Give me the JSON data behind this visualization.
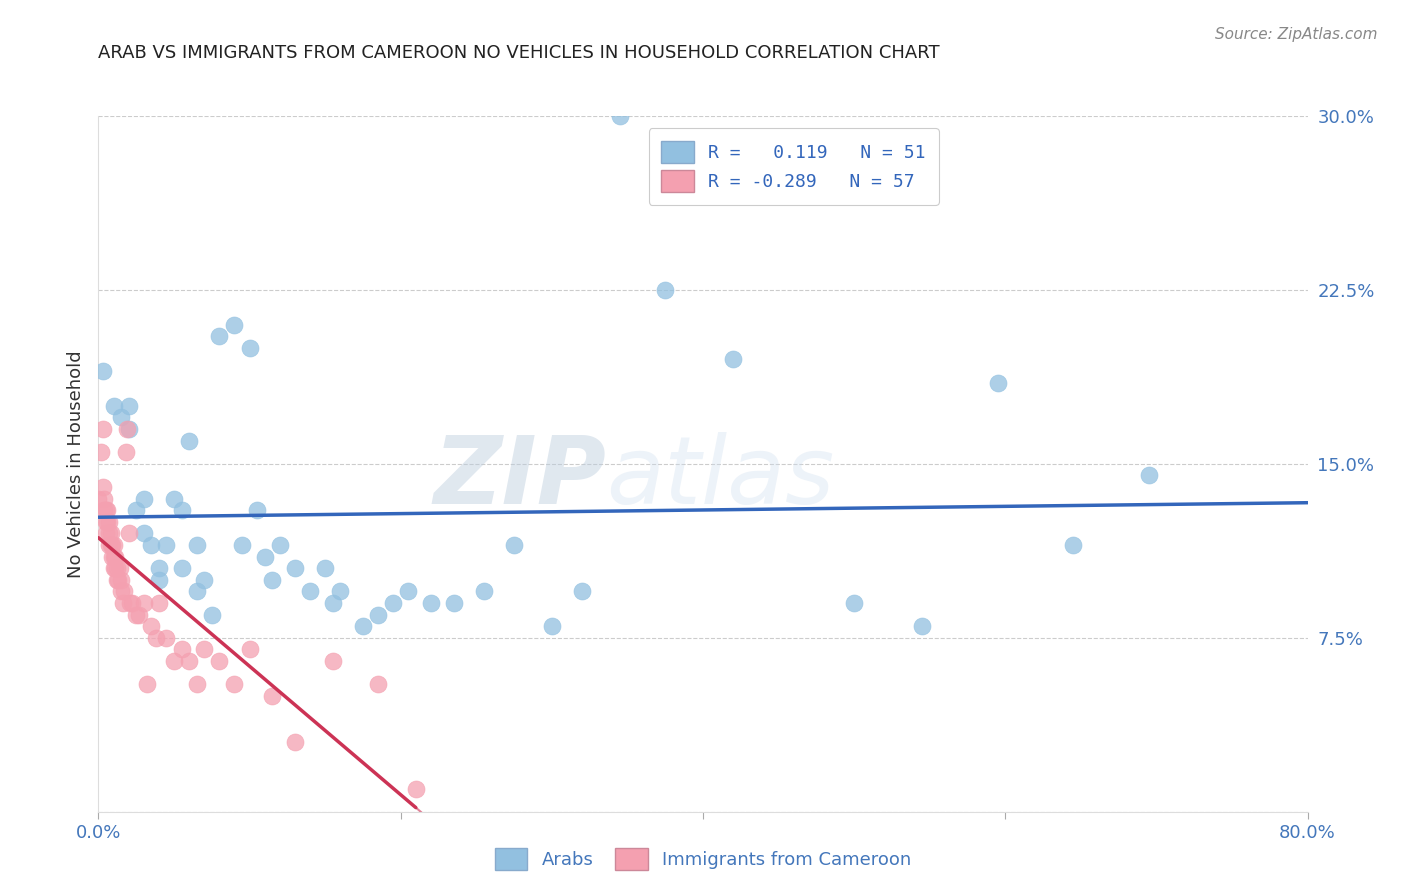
{
  "title": "ARAB VS IMMIGRANTS FROM CAMEROON NO VEHICLES IN HOUSEHOLD CORRELATION CHART",
  "source": "Source: ZipAtlas.com",
  "ylabel": "No Vehicles in Household",
  "xlim": [
    0,
    0.8
  ],
  "ylim": [
    0,
    0.3
  ],
  "legend_r1": "R =   0.119   N = 51",
  "legend_r2": "R = -0.289   N = 57",
  "color_arab": "#92C0E0",
  "color_cameroon": "#F4A0B0",
  "color_arab_line": "#3366BB",
  "color_cam_line": "#CC3355",
  "watermark_zip": "ZIP",
  "watermark_atlas": "atlas",
  "arab_x": [
    0.003,
    0.01,
    0.015,
    0.02,
    0.02,
    0.025,
    0.03,
    0.03,
    0.035,
    0.04,
    0.04,
    0.045,
    0.05,
    0.055,
    0.055,
    0.06,
    0.065,
    0.065,
    0.07,
    0.075,
    0.08,
    0.09,
    0.095,
    0.1,
    0.105,
    0.11,
    0.115,
    0.12,
    0.13,
    0.14,
    0.15,
    0.155,
    0.16,
    0.175,
    0.185,
    0.195,
    0.205,
    0.22,
    0.235,
    0.255,
    0.275,
    0.3,
    0.32,
    0.345,
    0.375,
    0.42,
    0.5,
    0.545,
    0.595,
    0.645,
    0.695
  ],
  "arab_y": [
    0.19,
    0.175,
    0.17,
    0.175,
    0.165,
    0.13,
    0.135,
    0.12,
    0.115,
    0.105,
    0.1,
    0.115,
    0.135,
    0.13,
    0.105,
    0.16,
    0.115,
    0.095,
    0.1,
    0.085,
    0.205,
    0.21,
    0.115,
    0.2,
    0.13,
    0.11,
    0.1,
    0.115,
    0.105,
    0.095,
    0.105,
    0.09,
    0.095,
    0.08,
    0.085,
    0.09,
    0.095,
    0.09,
    0.09,
    0.095,
    0.115,
    0.08,
    0.095,
    0.3,
    0.225,
    0.195,
    0.09,
    0.08,
    0.185,
    0.115,
    0.145
  ],
  "cameroon_x": [
    0.0,
    0.002,
    0.003,
    0.003,
    0.004,
    0.004,
    0.005,
    0.005,
    0.005,
    0.006,
    0.006,
    0.007,
    0.007,
    0.007,
    0.008,
    0.008,
    0.009,
    0.009,
    0.01,
    0.01,
    0.01,
    0.011,
    0.011,
    0.012,
    0.012,
    0.013,
    0.014,
    0.015,
    0.015,
    0.016,
    0.017,
    0.018,
    0.019,
    0.02,
    0.021,
    0.022,
    0.025,
    0.027,
    0.03,
    0.032,
    0.035,
    0.038,
    0.04,
    0.045,
    0.05,
    0.055,
    0.06,
    0.065,
    0.07,
    0.08,
    0.09,
    0.1,
    0.115,
    0.13,
    0.155,
    0.185,
    0.21
  ],
  "cameroon_y": [
    0.135,
    0.155,
    0.165,
    0.14,
    0.135,
    0.13,
    0.13,
    0.125,
    0.12,
    0.13,
    0.125,
    0.125,
    0.12,
    0.115,
    0.115,
    0.12,
    0.115,
    0.11,
    0.115,
    0.11,
    0.105,
    0.11,
    0.105,
    0.105,
    0.1,
    0.1,
    0.105,
    0.1,
    0.095,
    0.09,
    0.095,
    0.155,
    0.165,
    0.12,
    0.09,
    0.09,
    0.085,
    0.085,
    0.09,
    0.055,
    0.08,
    0.075,
    0.09,
    0.075,
    0.065,
    0.07,
    0.065,
    0.055,
    0.07,
    0.065,
    0.055,
    0.07,
    0.05,
    0.03,
    0.065,
    0.055,
    0.01
  ]
}
